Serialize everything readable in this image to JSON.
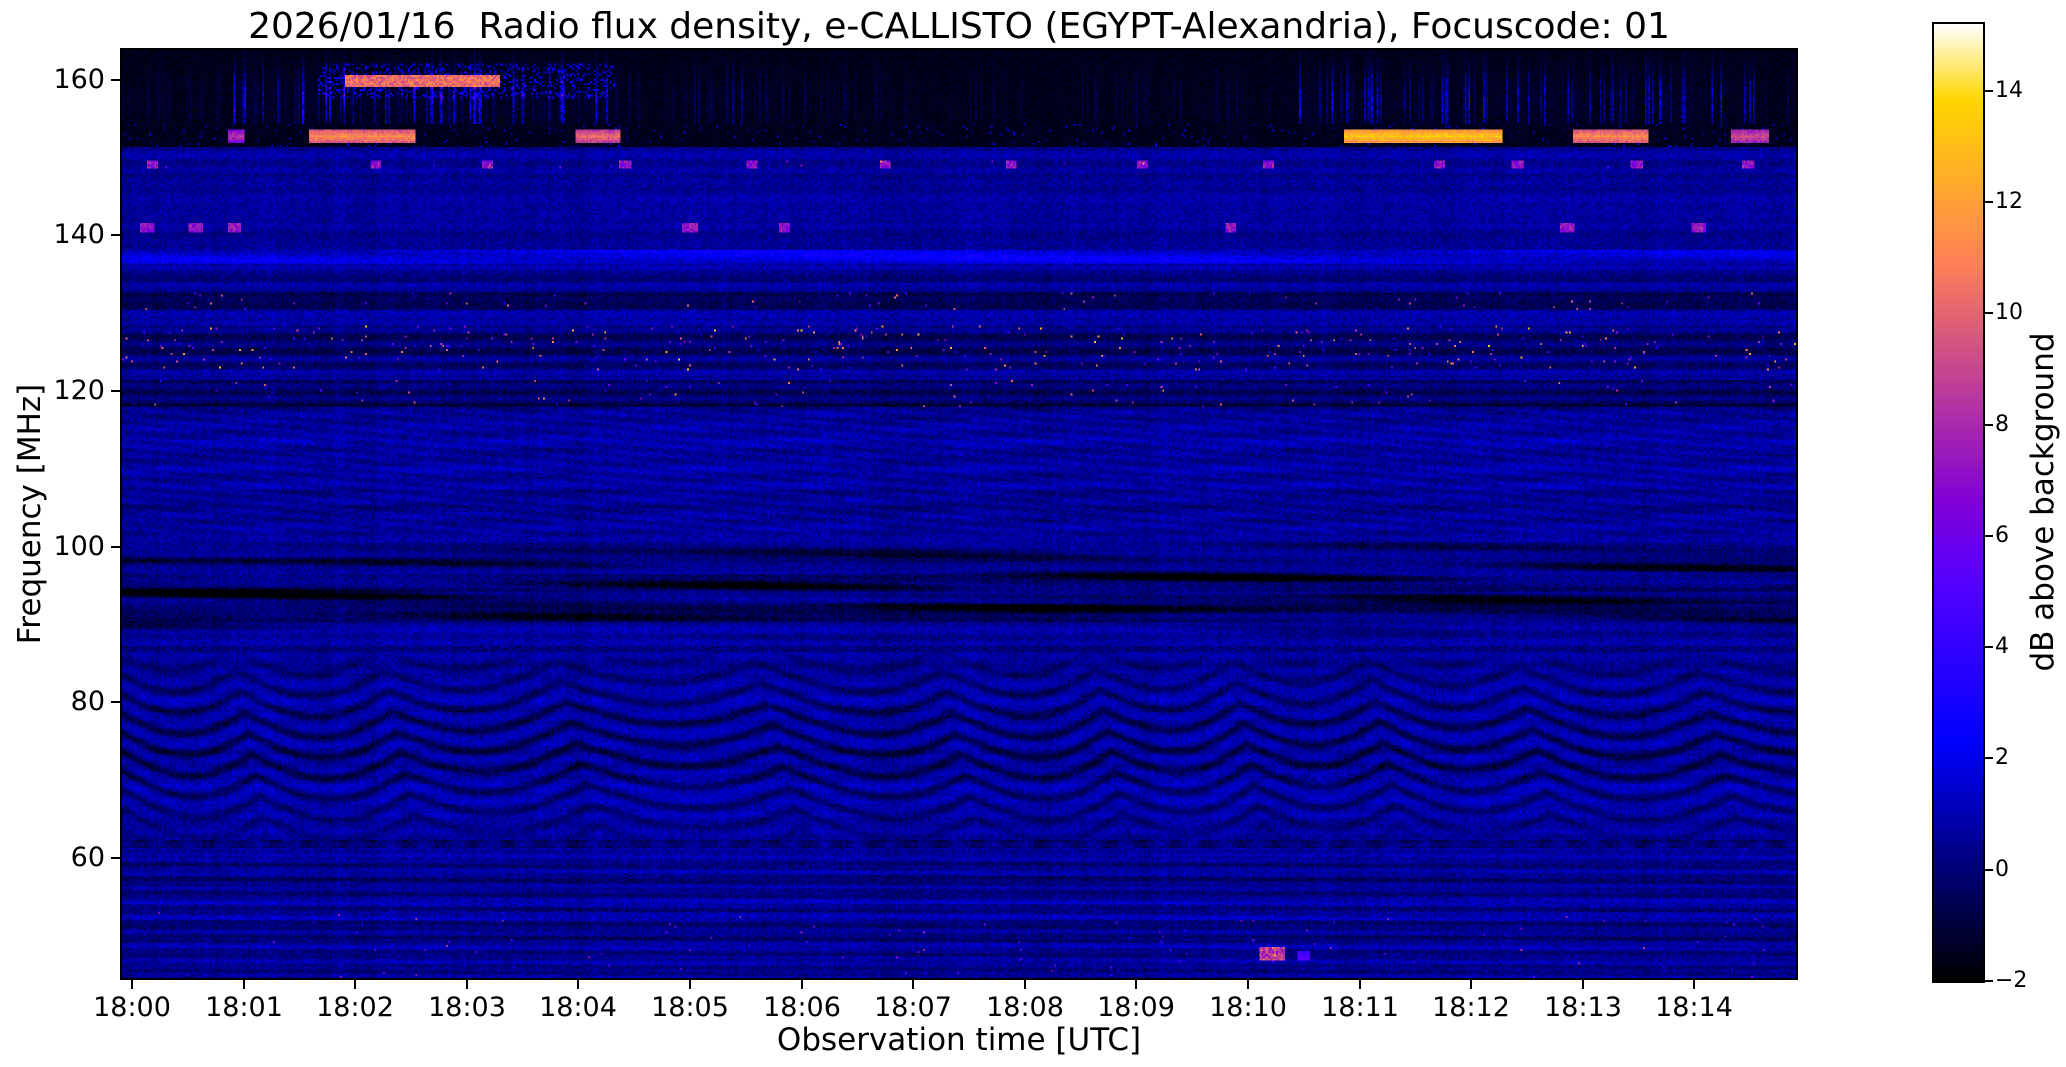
{
  "chart_data": {
    "type": "heatmap",
    "title": "2026/01/16  Radio flux density, e-CALLISTO (EGYPT-Alexandria), Focuscode: 01",
    "xlabel": "Observation time [UTC]",
    "ylabel": "Frequency [MHz]",
    "x_tick_labels": [
      "18:00",
      "18:01",
      "18:02",
      "18:03",
      "18:04",
      "18:05",
      "18:06",
      "18:07",
      "18:08",
      "18:09",
      "18:10",
      "18:11",
      "18:12",
      "18:13",
      "18:14"
    ],
    "x_tick_seconds": [
      0,
      60,
      120,
      180,
      240,
      300,
      360,
      420,
      480,
      540,
      600,
      660,
      720,
      780,
      840
    ],
    "x_range_seconds": [
      -5.4,
      894.6
    ],
    "y_ticks_mhz": [
      160,
      140,
      120,
      100,
      80,
      60
    ],
    "y_range_mhz": [
      44.6,
      163.8
    ],
    "grid": false,
    "colorbar": {
      "label": "dB above background",
      "tick_labels": [
        "14",
        "12",
        "10",
        "8",
        "6",
        "4",
        "2",
        "0",
        "−2"
      ],
      "tick_values": [
        14,
        12,
        10,
        8,
        6,
        4,
        2,
        0,
        -2
      ],
      "range_db": [
        -2,
        15.2
      ],
      "colormap": "gnuplot2 (black-blue-violet-pink-yellow-white)"
    },
    "features": [
      {
        "freq_mhz": [
          154.5,
          164
        ],
        "desc": "near-black band with vertical broadband RFI streaks (purple/pink), strongest 18:01-18:04 and 18:10.5-18:14, up to ~8 dB"
      },
      {
        "freq_mhz": [
          159,
          160.6
        ],
        "time_utc": [
          "18:02",
          "18:03.3"
        ],
        "db": 10,
        "desc": "bright pink narrowband carrier line"
      },
      {
        "freq_mhz": [
          151.5,
          154
        ],
        "desc": "dark channel with bright pink bursts near 18:01.6-18:02.5, 18:04, 18:11-18:12.2, 18:13-18:13.5, up to ~12 dB"
      },
      {
        "freq_mhz": 149,
        "db": 7,
        "desc": "sparse short RFI blips spaced roughly every minute across the whole interval"
      },
      {
        "freq_mhz": 141,
        "db": 7,
        "desc": "sparse RFI dashes mainly 18:00-18:01, 18:05, 18:06, 18:10, 18:13, 18:14"
      },
      {
        "freq_mhz": 137,
        "db": 2,
        "desc": "weak persistent enhancement (light blue horizontal line)"
      },
      {
        "freq_mhz": [
          130.5,
          132.5
        ],
        "desc": "dark channel with scattered bright speckles"
      },
      {
        "freq_mhz": [
          123,
          128
        ],
        "db": "4-13",
        "desc": "dense scattered RFI speckles (pink/yellow) across full interval"
      },
      {
        "freq_mhz": [
          118,
          121
        ],
        "desc": "dark channel with occasional speckles, cluster near 18:10-18:11 and 18:13"
      },
      {
        "freq_mhz": [
          101,
          118
        ],
        "desc": "blue background with faint diagonal moire striping"
      },
      {
        "freq_mhz": [
          88,
          101
        ],
        "desc": "FM broadcast band: dark wavy absorption lanes, prominent near 91-93, 95-96 and 98-100 MHz"
      },
      {
        "freq_mhz": [
          62,
          86
        ],
        "desc": "quasi-periodic dark chevron ripple pattern (interference fringes), ~90 s repetition"
      },
      {
        "freq_mhz": 62,
        "desc": "thin dark dashed horizontal line"
      },
      {
        "freq_mhz": [
          45,
          60
        ],
        "desc": "horizontally striped background with sparse weak speckles; brighter blips near 18:10 at ~47-48 MHz"
      }
    ]
  }
}
